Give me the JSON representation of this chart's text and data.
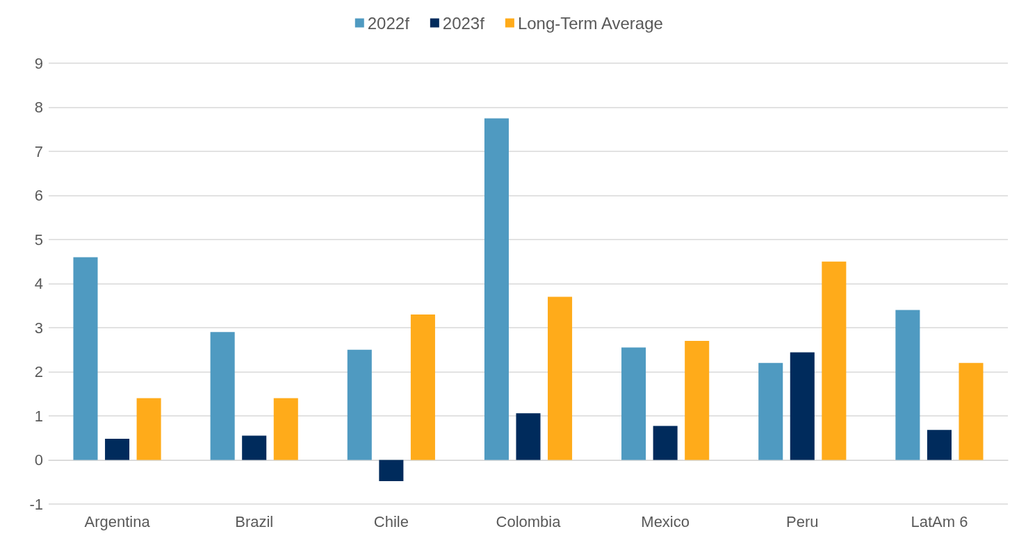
{
  "chart_data": {
    "type": "bar",
    "categories": [
      "Argentina",
      "Brazil",
      "Chile",
      "Colombia",
      "Mexico",
      "Peru",
      "LatAm 6"
    ],
    "series": [
      {
        "name": "2022f",
        "color": "#4f9ac1",
        "values": [
          4.6,
          2.9,
          2.5,
          7.75,
          2.55,
          2.2,
          3.4
        ]
      },
      {
        "name": "2023f",
        "color": "#002b5c",
        "values": [
          0.48,
          0.55,
          -0.48,
          1.06,
          0.77,
          2.44,
          0.68
        ]
      },
      {
        "name": "Long-Term Average",
        "color": "#ffab1a",
        "values": [
          1.4,
          1.4,
          3.3,
          3.7,
          2.7,
          4.5,
          2.2
        ]
      }
    ],
    "ylim": [
      -1,
      9
    ],
    "yticks": [
      -1,
      0,
      1,
      2,
      3,
      4,
      5,
      6,
      7,
      8,
      9
    ],
    "grid": "y",
    "legend": "top"
  }
}
